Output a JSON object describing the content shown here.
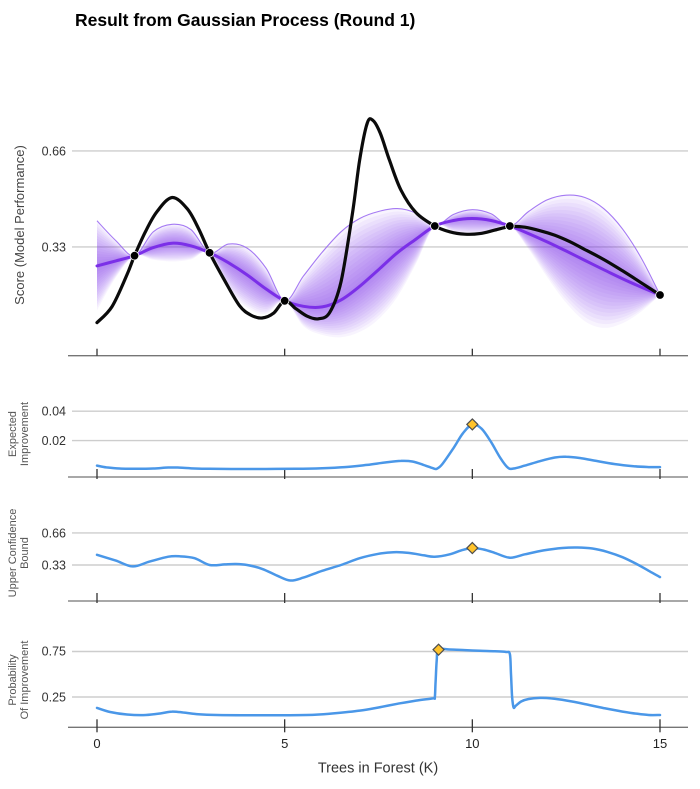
{
  "title": "Result from Gaussian Process (Round 1)",
  "x_axis": {
    "label": "Trees in Forest (K)",
    "ticks": [
      {
        "value": 0,
        "label": "0"
      },
      {
        "value": 5,
        "label": "5"
      },
      {
        "value": 10,
        "label": "10"
      },
      {
        "value": 15,
        "label": "15"
      }
    ],
    "range": [
      0,
      15
    ]
  },
  "colors": {
    "true_function": "#0b0b0b",
    "gp_mean": "#7b2fe8",
    "gp_band": "#7c3aed",
    "gp_band_edge": "#9b6bf2",
    "acquisition_line": "#4a97e8",
    "best_point_fill": "#ffc32b",
    "best_point_stroke": "#4d4d4d",
    "observed_point": "#000000",
    "gridline": "#cdcdcd",
    "axis": "#757575",
    "tick": "#333333"
  },
  "chart_data": [
    {
      "id": "gp-posterior",
      "type": "line",
      "ylabel": "Score (Model Performance)",
      "yticks": [
        {
          "value": 0.33,
          "label": "0.33"
        },
        {
          "value": 0.66,
          "label": "0.66"
        }
      ],
      "ylim": [
        -0.05,
        0.85
      ],
      "grid": true,
      "observed_points": [
        [
          1,
          0.3
        ],
        [
          3,
          0.31
        ],
        [
          5,
          0.145
        ],
        [
          9,
          0.402
        ],
        [
          11,
          0.402
        ],
        [
          15,
          0.165
        ]
      ],
      "series": [
        {
          "name": "true-function",
          "points": [
            [
              0,
              0.07
            ],
            [
              0.4,
              0.125
            ],
            [
              0.8,
              0.235
            ],
            [
              1,
              0.3
            ],
            [
              1.3,
              0.385
            ],
            [
              1.6,
              0.452
            ],
            [
              2,
              0.5
            ],
            [
              2.4,
              0.462
            ],
            [
              2.7,
              0.395
            ],
            [
              3,
              0.31
            ],
            [
              3.4,
              0.215
            ],
            [
              3.8,
              0.128
            ],
            [
              4.1,
              0.096
            ],
            [
              4.4,
              0.086
            ],
            [
              4.7,
              0.102
            ],
            [
              5,
              0.145
            ],
            [
              5.3,
              0.118
            ],
            [
              5.6,
              0.092
            ],
            [
              5.9,
              0.083
            ],
            [
              6.2,
              0.105
            ],
            [
              6.5,
              0.21
            ],
            [
              6.8,
              0.44
            ],
            [
              7,
              0.63
            ],
            [
              7.2,
              0.755
            ],
            [
              7.35,
              0.765
            ],
            [
              7.55,
              0.72
            ],
            [
              7.8,
              0.625
            ],
            [
              8.1,
              0.525
            ],
            [
              8.5,
              0.448
            ],
            [
              9,
              0.402
            ],
            [
              9.4,
              0.382
            ],
            [
              9.8,
              0.374
            ],
            [
              10.2,
              0.376
            ],
            [
              10.6,
              0.388
            ],
            [
              11,
              0.4
            ],
            [
              11.4,
              0.398
            ],
            [
              11.8,
              0.386
            ],
            [
              12.2,
              0.37
            ],
            [
              12.6,
              0.348
            ],
            [
              13,
              0.321
            ],
            [
              13.5,
              0.287
            ],
            [
              14,
              0.248
            ],
            [
              14.5,
              0.207
            ],
            [
              15,
              0.165
            ]
          ]
        },
        {
          "name": "gp-mean",
          "x": [
            0,
            0.5,
            1,
            1.5,
            2,
            2.5,
            3,
            3.5,
            4,
            4.5,
            5,
            5.5,
            6,
            6.5,
            7,
            7.5,
            8,
            8.5,
            9,
            9.5,
            10,
            10.5,
            11,
            11.5,
            12,
            12.5,
            13,
            13.5,
            14,
            14.5,
            15
          ],
          "values": [
            0.265,
            0.282,
            0.3,
            0.328,
            0.343,
            0.334,
            0.31,
            0.276,
            0.234,
            0.186,
            0.145,
            0.126,
            0.124,
            0.148,
            0.195,
            0.252,
            0.31,
            0.357,
            0.402,
            0.421,
            0.428,
            0.421,
            0.402,
            0.376,
            0.347,
            0.316,
            0.284,
            0.252,
            0.221,
            0.192,
            0.165
          ]
        },
        {
          "name": "gp-upper-bound",
          "x": [
            0,
            0.5,
            1,
            1.5,
            2,
            2.5,
            3,
            3.5,
            4,
            4.5,
            5,
            5.5,
            6,
            6.5,
            7,
            7.5,
            8,
            8.5,
            9,
            9.5,
            10,
            10.5,
            11,
            11.5,
            12,
            12.5,
            13,
            13.5,
            14,
            14.5,
            15
          ],
          "values": [
            0.42,
            0.352,
            0.3,
            0.382,
            0.408,
            0.39,
            0.31,
            0.34,
            0.326,
            0.258,
            0.145,
            0.23,
            0.312,
            0.382,
            0.428,
            0.452,
            0.462,
            0.446,
            0.402,
            0.442,
            0.458,
            0.444,
            0.402,
            0.452,
            0.492,
            0.508,
            0.5,
            0.462,
            0.392,
            0.292,
            0.165
          ]
        },
        {
          "name": "gp-lower-bound",
          "x": [
            0,
            0.5,
            1,
            1.5,
            2,
            2.5,
            3,
            3.5,
            4,
            4.5,
            5,
            5.5,
            6,
            6.5,
            7,
            7.5,
            8,
            8.5,
            9,
            9.5,
            10,
            10.5,
            11,
            11.5,
            12,
            12.5,
            13,
            13.5,
            14,
            14.5,
            15
          ],
          "values": [
            0.112,
            0.225,
            0.3,
            0.286,
            0.28,
            0.287,
            0.31,
            0.185,
            0.122,
            0.1,
            0.145,
            0.058,
            0.028,
            0.02,
            0.038,
            0.082,
            0.158,
            0.272,
            0.402,
            0.382,
            0.374,
            0.38,
            0.402,
            0.322,
            0.225,
            0.138,
            0.075,
            0.052,
            0.068,
            0.108,
            0.165
          ]
        }
      ]
    },
    {
      "id": "expected-improvement",
      "type": "line",
      "ylabel_lines": [
        "Expected",
        "Improvement"
      ],
      "yticks": [
        {
          "value": 0.02,
          "label": "0.02"
        },
        {
          "value": 0.04,
          "label": "0.04"
        }
      ],
      "best_point": [
        10,
        0.031
      ],
      "points": [
        [
          0,
          0.003
        ],
        [
          0.25,
          0.0018
        ],
        [
          0.6,
          0.001
        ],
        [
          1,
          0.0008
        ],
        [
          1.5,
          0.001
        ],
        [
          1.9,
          0.0017
        ],
        [
          2.2,
          0.0016
        ],
        [
          2.6,
          0.001
        ],
        [
          3,
          0.0008
        ],
        [
          3.7,
          0.0007
        ],
        [
          4.5,
          0.0007
        ],
        [
          5.3,
          0.0008
        ],
        [
          6,
          0.0012
        ],
        [
          6.6,
          0.002
        ],
        [
          7.2,
          0.0035
        ],
        [
          7.7,
          0.0052
        ],
        [
          8.1,
          0.0062
        ],
        [
          8.4,
          0.0058
        ],
        [
          8.7,
          0.0035
        ],
        [
          8.95,
          0.0012
        ],
        [
          9.05,
          0.0008
        ],
        [
          9.2,
          0.004
        ],
        [
          9.5,
          0.015
        ],
        [
          9.75,
          0.025
        ],
        [
          10,
          0.031
        ],
        [
          10.25,
          0.028
        ],
        [
          10.5,
          0.019
        ],
        [
          10.75,
          0.008
        ],
        [
          10.95,
          0.0015
        ],
        [
          11.1,
          0.001
        ],
        [
          11.4,
          0.003
        ],
        [
          11.8,
          0.006
        ],
        [
          12.2,
          0.0085
        ],
        [
          12.5,
          0.009
        ],
        [
          12.9,
          0.008
        ],
        [
          13.3,
          0.0062
        ],
        [
          13.8,
          0.004
        ],
        [
          14.3,
          0.0026
        ],
        [
          14.7,
          0.002
        ],
        [
          15,
          0.002
        ]
      ]
    },
    {
      "id": "upper-confidence-bound",
      "type": "line",
      "ylabel_lines": [
        "Upper Confidence",
        "Bound"
      ],
      "yticks": [
        {
          "value": 0.33,
          "label": "0.33"
        },
        {
          "value": 0.66,
          "label": "0.66"
        }
      ],
      "best_point": [
        10,
        0.505
      ],
      "points": [
        [
          0,
          0.435
        ],
        [
          0.5,
          0.375
        ],
        [
          0.95,
          0.315
        ],
        [
          1.4,
          0.365
        ],
        [
          1.9,
          0.415
        ],
        [
          2.2,
          0.42
        ],
        [
          2.6,
          0.4
        ],
        [
          3,
          0.33
        ],
        [
          3.4,
          0.336
        ],
        [
          3.7,
          0.34
        ],
        [
          4,
          0.33
        ],
        [
          4.4,
          0.29
        ],
        [
          4.8,
          0.22
        ],
        [
          5.15,
          0.17
        ],
        [
          5.5,
          0.2
        ],
        [
          6,
          0.27
        ],
        [
          6.5,
          0.33
        ],
        [
          7,
          0.4
        ],
        [
          7.5,
          0.445
        ],
        [
          7.9,
          0.462
        ],
        [
          8.3,
          0.455
        ],
        [
          8.7,
          0.43
        ],
        [
          9,
          0.415
        ],
        [
          9.4,
          0.44
        ],
        [
          9.7,
          0.48
        ],
        [
          10,
          0.505
        ],
        [
          10.3,
          0.49
        ],
        [
          10.6,
          0.455
        ],
        [
          11,
          0.405
        ],
        [
          11.4,
          0.44
        ],
        [
          11.9,
          0.48
        ],
        [
          12.4,
          0.505
        ],
        [
          12.8,
          0.51
        ],
        [
          13.2,
          0.5
        ],
        [
          13.6,
          0.465
        ],
        [
          14,
          0.41
        ],
        [
          14.4,
          0.335
        ],
        [
          14.7,
          0.27
        ],
        [
          15,
          0.205
        ]
      ]
    },
    {
      "id": "probability-of-improvement",
      "type": "line",
      "ylabel_lines": [
        "Probability",
        "Of Improvement"
      ],
      "yticks": [
        {
          "value": 0.25,
          "label": "0.25"
        },
        {
          "value": 0.75,
          "label": "0.75"
        }
      ],
      "best_point": [
        9.1,
        0.77
      ],
      "points": [
        [
          0,
          0.13
        ],
        [
          0.35,
          0.085
        ],
        [
          0.8,
          0.058
        ],
        [
          1.3,
          0.052
        ],
        [
          1.7,
          0.07
        ],
        [
          2,
          0.09
        ],
        [
          2.3,
          0.08
        ],
        [
          2.7,
          0.06
        ],
        [
          3.2,
          0.052
        ],
        [
          4,
          0.05
        ],
        [
          5,
          0.05
        ],
        [
          5.8,
          0.055
        ],
        [
          6.3,
          0.07
        ],
        [
          7,
          0.1
        ],
        [
          7.5,
          0.135
        ],
        [
          8,
          0.175
        ],
        [
          8.5,
          0.21
        ],
        [
          8.95,
          0.235
        ],
        [
          9,
          0.245
        ],
        [
          9.02,
          0.4
        ],
        [
          9.05,
          0.65
        ],
        [
          9.1,
          0.77
        ],
        [
          9.4,
          0.772
        ],
        [
          9.8,
          0.765
        ],
        [
          10.2,
          0.758
        ],
        [
          10.6,
          0.752
        ],
        [
          10.9,
          0.745
        ],
        [
          11,
          0.72
        ],
        [
          11.03,
          0.5
        ],
        [
          11.06,
          0.25
        ],
        [
          11.1,
          0.135
        ],
        [
          11.16,
          0.155
        ],
        [
          11.3,
          0.2
        ],
        [
          11.5,
          0.228
        ],
        [
          11.8,
          0.24
        ],
        [
          12.1,
          0.235
        ],
        [
          12.5,
          0.212
        ],
        [
          13,
          0.172
        ],
        [
          13.5,
          0.128
        ],
        [
          14,
          0.09
        ],
        [
          14.4,
          0.065
        ],
        [
          14.7,
          0.052
        ],
        [
          15,
          0.052
        ]
      ]
    }
  ]
}
